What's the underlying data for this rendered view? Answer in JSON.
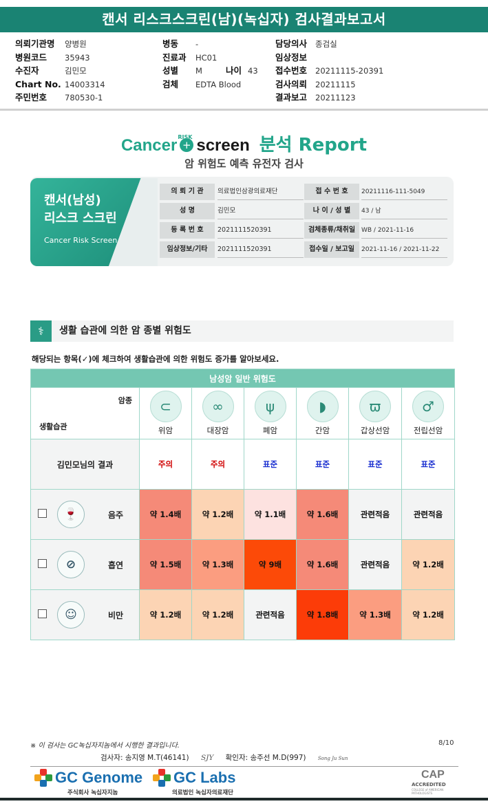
{
  "title": "캔서 리스크스크린(남)(녹십자) 검사결과보고서",
  "header": {
    "col1": [
      {
        "k": "의뢰기관명",
        "v": "양병원"
      },
      {
        "k": "병원코드",
        "v": "35943"
      },
      {
        "k": "수진자",
        "v": "김민모"
      },
      {
        "k": "Chart No.",
        "v": "14003314"
      },
      {
        "k": "주민번호",
        "v": "780530-1"
      }
    ],
    "col2": [
      {
        "k": "병동",
        "v": "-"
      },
      {
        "k": "진료과",
        "v": "HC01"
      },
      {
        "k": "성별",
        "v": "M"
      },
      {
        "k": "검체",
        "v": "EDTA Blood"
      }
    ],
    "age_label": "나이",
    "age_value": "43",
    "col3": [
      {
        "k": "담당의사",
        "v": "종검실"
      },
      {
        "k": "임상정보",
        "v": ""
      },
      {
        "k": "접수번호",
        "v": "20211115-20391"
      },
      {
        "k": "검사의뢰",
        "v": "20211115"
      },
      {
        "k": "결과보고",
        "v": "20211123"
      }
    ]
  },
  "logo": {
    "cancer": "Cancer",
    "risk": "RISK",
    "screen": "screen",
    "report": "분석 Report",
    "subtitle": "암 위험도 예측 유전자 검사"
  },
  "card": {
    "title_line1": "캔서(남성)",
    "title_line2": "리스크 스크린",
    "english": "Cancer Risk Screen",
    "rows": [
      {
        "k1": "의 뢰 기 관",
        "v1": "의료법인삼광의료재단",
        "k2": "접 수 번 호",
        "v2": "20211116-111-5049"
      },
      {
        "k1": "성        명",
        "v1": "김민모",
        "k2": "나 이 / 성 별",
        "v2": "43 / 남"
      },
      {
        "k1": "등 록 번 호",
        "v1": "2021111520391",
        "k2": "검체종류/채취일",
        "v2": "WB / 2021-11-16"
      },
      {
        "k1": "임상정보/기타",
        "v1": "2021111520391",
        "k2": "접수일 / 보고일",
        "v2": "2021-11-16 / 2021-11-22"
      }
    ]
  },
  "section": {
    "title": "생활 습관에 의한 암 종별 위험도",
    "instruction": "해당되는 항목(✓)에 체크하여 생활습관에 의한 위험도 증가를 알아보세요."
  },
  "table": {
    "band": "남성암 일반 위험도",
    "corner_top": "암종",
    "corner_bottom": "생활습관",
    "cancers": [
      {
        "name": "위암",
        "icon": "stomach-icon",
        "glyph": "⊂"
      },
      {
        "name": "대장암",
        "icon": "colon-icon",
        "glyph": "∞"
      },
      {
        "name": "폐암",
        "icon": "lung-icon",
        "glyph": "ψ"
      },
      {
        "name": "간암",
        "icon": "liver-icon",
        "glyph": "◗"
      },
      {
        "name": "갑상선암",
        "icon": "thyroid-icon",
        "glyph": "ϖ"
      },
      {
        "name": "전립선암",
        "icon": "prostate-icon",
        "glyph": "♂"
      }
    ],
    "result_label": "김민모님의 결과",
    "results": [
      {
        "text": "주의",
        "level": "warn"
      },
      {
        "text": "주의",
        "level": "warn"
      },
      {
        "text": "표준",
        "level": "norm"
      },
      {
        "text": "표준",
        "level": "norm"
      },
      {
        "text": "표준",
        "level": "norm"
      },
      {
        "text": "표준",
        "level": "norm"
      }
    ],
    "habits": [
      {
        "name": "음주",
        "icon": "alcohol-icon",
        "glyph": "🍷",
        "cells": [
          {
            "text": "약 1.4배",
            "color": "#f58a78"
          },
          {
            "text": "약 1.2배",
            "color": "#fcd4b4"
          },
          {
            "text": "약 1.1배",
            "color": "#fde2e0"
          },
          {
            "text": "약 1.6배",
            "color": "#f58a78"
          },
          {
            "text": "관련적음",
            "color": "#f3f4f4"
          },
          {
            "text": "관련적음",
            "color": "#f3f4f4"
          }
        ]
      },
      {
        "name": "흡연",
        "icon": "smoking-icon",
        "glyph": "⊘",
        "cells": [
          {
            "text": "약 1.5배",
            "color": "#f58a78"
          },
          {
            "text": "약 1.3배",
            "color": "#fb9d80"
          },
          {
            "text": "약 9배",
            "color": "#fc4a08"
          },
          {
            "text": "약 1.6배",
            "color": "#f58a78"
          },
          {
            "text": "관련적음",
            "color": "#f3f4f4"
          },
          {
            "text": "약 1.2배",
            "color": "#fcd4b4"
          }
        ]
      },
      {
        "name": "비만",
        "icon": "obesity-icon",
        "glyph": "☺",
        "cells": [
          {
            "text": "약 1.2배",
            "color": "#fcd4b4"
          },
          {
            "text": "약 1.2배",
            "color": "#fcd4b4"
          },
          {
            "text": "관련적음",
            "color": "#f3f4f4"
          },
          {
            "text": "약 1.8배",
            "color": "#fc3c08"
          },
          {
            "text": "약 1.3배",
            "color": "#fb9d80"
          },
          {
            "text": "약 1.2배",
            "color": "#fcd4b4"
          }
        ]
      }
    ]
  },
  "footer": {
    "note": "※ 이 검사는 GC녹십자지놈에서 시행한 결과입니다.",
    "page": "8/10",
    "tester": "검사자: 송지영 M.T(46141)",
    "tester_sig": "SJY",
    "confirmer": "확인자: 송주선 M.D(997)",
    "confirmer_sig": "Song Ju Sun",
    "brand1": "GC Genome",
    "brand1_sub": "주식회사 녹십자지놈",
    "brand2": "GC Labs",
    "brand2_sub": "의료법인 녹십자의료재단",
    "cap": "CAP",
    "cap_sub": "ACCREDITED",
    "cap_tiny": "COLLEGE of AMERICAN PATHOLOGISTS"
  }
}
